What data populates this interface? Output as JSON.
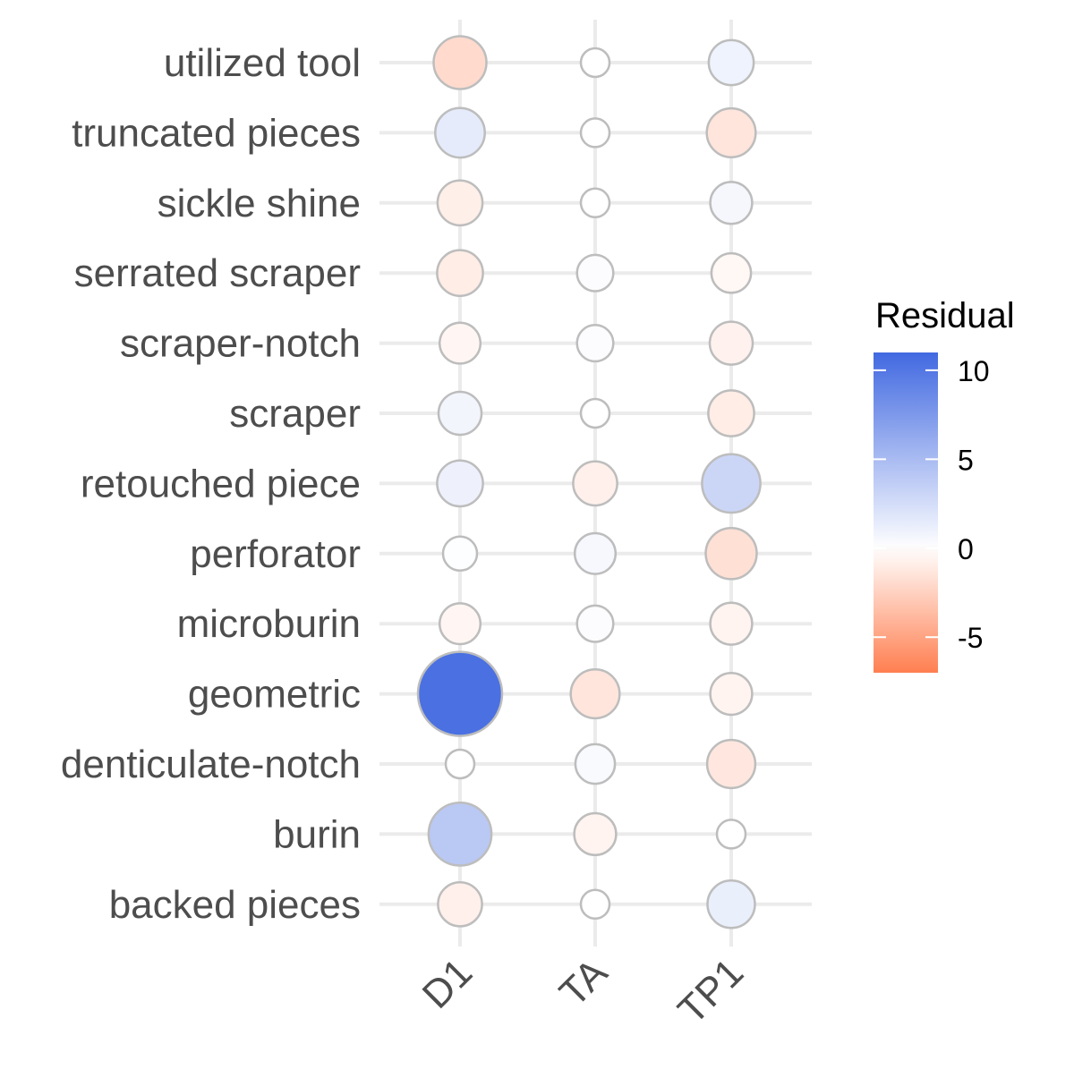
{
  "chart_data": {
    "type": "bubble",
    "x_categories": [
      "D1",
      "TA",
      "TP1"
    ],
    "y_categories": [
      "utilized tool",
      "truncated pieces",
      "sickle shine",
      "serrated scraper",
      "scraper-notch",
      "scraper",
      "retouched piece",
      "perforator",
      "microburin",
      "geometric",
      "denticulate-notch",
      "burin",
      "backed pieces"
    ],
    "residuals": [
      [
        -2.0,
        0.0,
        0.9
      ],
      [
        1.5,
        0.0,
        -1.4
      ],
      [
        -0.9,
        0.0,
        0.6
      ],
      [
        -1.0,
        0.2,
        -0.4
      ],
      [
        -0.5,
        0.2,
        -0.7
      ],
      [
        0.7,
        0.0,
        -1.0
      ],
      [
        1.0,
        -0.8,
        3.0
      ],
      [
        0.1,
        0.5,
        -1.7
      ],
      [
        -0.5,
        0.2,
        -0.6
      ],
      [
        10.5,
        -1.4,
        -0.6
      ],
      [
        0.0,
        0.4,
        -1.3
      ],
      [
        4.0,
        -0.6,
        0.0
      ],
      [
        -0.8,
        0.0,
        1.2
      ]
    ],
    "legend": {
      "title": "Residual",
      "ticks": [
        10,
        5,
        0,
        -5
      ],
      "tick_labels": [
        "10",
        "5",
        "0",
        "-5"
      ],
      "range": [
        -7,
        11
      ],
      "colors": {
        "high": "#4169e1",
        "mid": "#ffffff",
        "low": "#ff7f50"
      }
    }
  }
}
